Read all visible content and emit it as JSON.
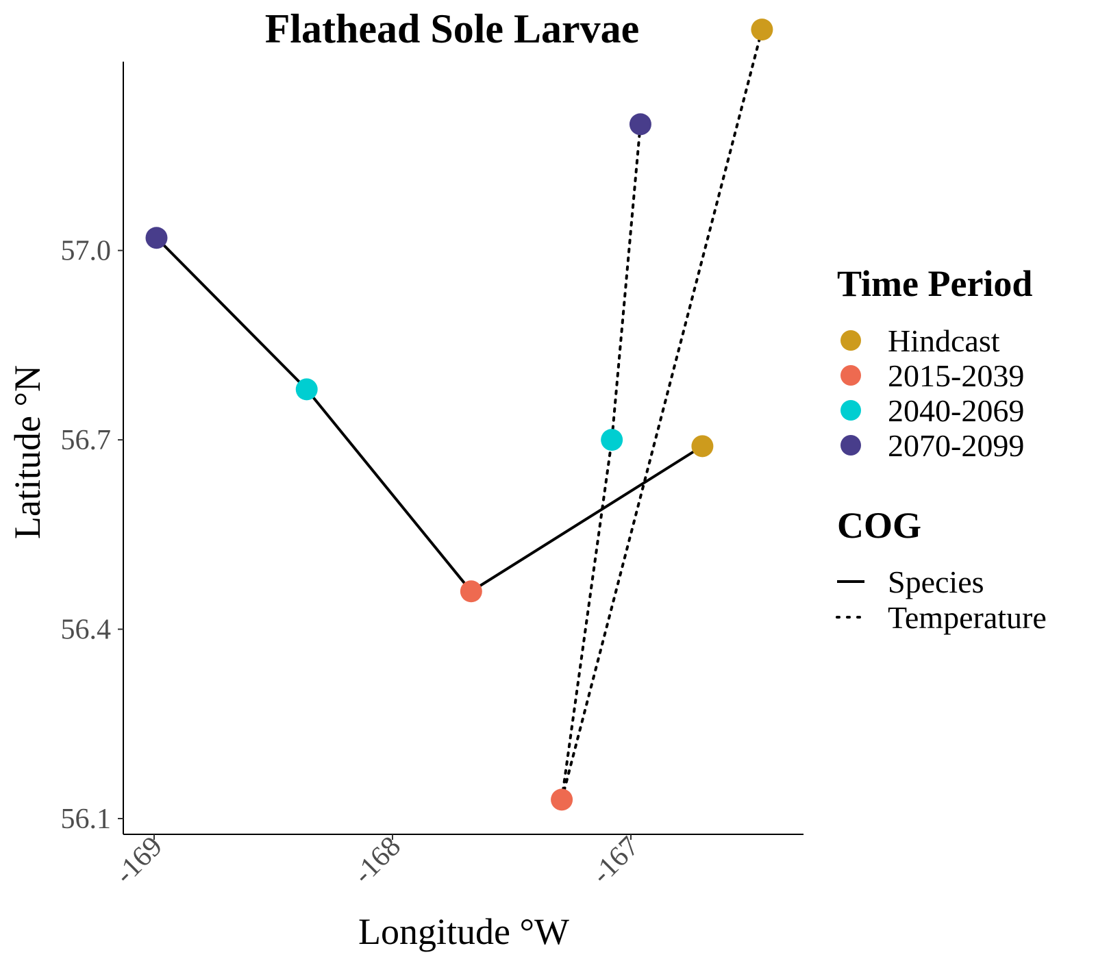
{
  "chart_data": {
    "type": "scatter",
    "title": "Flathead Sole Larvae",
    "xlabel": "Longitude °W",
    "ylabel": "Latitude °N",
    "xlim": [
      -169.05,
      -166.25
    ],
    "ylim": [
      56.1,
      57.35
    ],
    "x_ticks": [
      -169,
      -168,
      -167
    ],
    "x_tick_labels": [
      "-169",
      "-168",
      "-167"
    ],
    "y_ticks": [
      56.1,
      56.4,
      56.7,
      57.0
    ],
    "y_tick_labels": [
      "56.1",
      "56.4",
      "56.7",
      "57.0"
    ],
    "grid": false,
    "legend_position": "right",
    "time_periods": [
      {
        "name": "Hindcast",
        "color": "#CD9B1D"
      },
      {
        "name": "2015-2039",
        "color": "#EE6A50"
      },
      {
        "name": "2040-2069",
        "color": "#00CED1"
      },
      {
        "name": "2070-2099",
        "color": "#483D8B"
      }
    ],
    "series": [
      {
        "name": "Species",
        "line_style": "solid",
        "points": [
          {
            "x": -166.7,
            "y": 56.69,
            "period": "Hindcast"
          },
          {
            "x": -167.67,
            "y": 56.46,
            "period": "2015-2039"
          },
          {
            "x": -168.36,
            "y": 56.78,
            "period": "2040-2069"
          },
          {
            "x": -168.99,
            "y": 57.02,
            "period": "2070-2099"
          }
        ]
      },
      {
        "name": "Temperature",
        "line_style": "dotted",
        "paths": [
          [
            {
              "x": -166.45,
              "y": 57.35,
              "period": "Hindcast"
            },
            {
              "x": -167.29,
              "y": 56.13,
              "period": "2015-2039"
            }
          ],
          [
            {
              "x": -167.29,
              "y": 56.13,
              "period": "2015-2039"
            },
            {
              "x": -167.08,
              "y": 56.7,
              "period": "2040-2069"
            },
            {
              "x": -166.96,
              "y": 57.2,
              "period": "2070-2099"
            }
          ]
        ]
      }
    ],
    "legend": {
      "color_title": "Time Period",
      "linetype_title": "COG",
      "linetypes": [
        "Species",
        "Temperature"
      ]
    }
  }
}
